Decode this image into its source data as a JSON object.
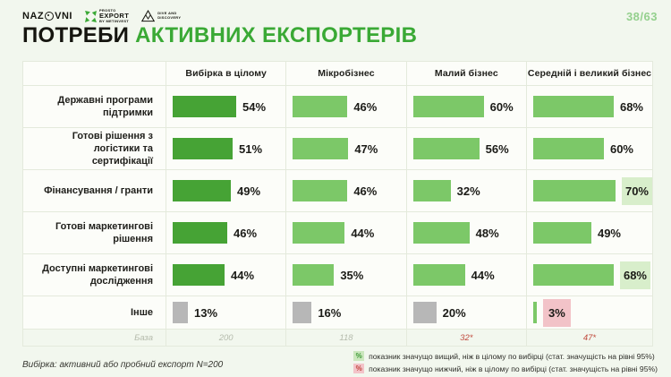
{
  "page": {
    "number": "38/63",
    "background": "#f2f7ee",
    "accent_green": "#3aa935"
  },
  "logos": {
    "nazovni": {
      "text_before": "NAZ",
      "text_after": "VNI"
    },
    "export": {
      "top": "PROSTO",
      "main": "EXPORT",
      "bottom": "BY METINVEST"
    },
    "discovery": {
      "line1": "DIVE AND",
      "line2": "DISCOVERY"
    }
  },
  "title": {
    "part1": "ПОТРЕБИ ",
    "part2": "АКТИВНИХ ЕКСПОРТЕРІВ"
  },
  "chart_data": {
    "type": "bar",
    "orientation": "horizontal",
    "title": "ПОТРЕБИ АКТИВНИХ ЕКСПОРТЕРІВ",
    "unit": "%",
    "columns": [
      "Вибірка в цілому",
      "Мікробізнес",
      "Малий бізнес",
      "Середній і великий бізнес"
    ],
    "rows": [
      {
        "label": "Державні програми підтримки",
        "cells": [
          {
            "value": 54
          },
          {
            "value": 46
          },
          {
            "value": 60
          },
          {
            "value": 68
          }
        ]
      },
      {
        "label": "Готові рішення з логістики та сертифікації",
        "cells": [
          {
            "value": 51
          },
          {
            "value": 47
          },
          {
            "value": 56
          },
          {
            "value": 60
          }
        ]
      },
      {
        "label": "Фінансування / гранти",
        "cells": [
          {
            "value": 49
          },
          {
            "value": 46
          },
          {
            "value": 32
          },
          {
            "value": 70,
            "significance": "higher"
          }
        ]
      },
      {
        "label": "Готові маркетингові рішення",
        "cells": [
          {
            "value": 46
          },
          {
            "value": 44
          },
          {
            "value": 48
          },
          {
            "value": 49
          }
        ]
      },
      {
        "label": "Доступні маркетингові дослідження",
        "cells": [
          {
            "value": 44
          },
          {
            "value": 35
          },
          {
            "value": 44
          },
          {
            "value": 68,
            "significance": "higher"
          }
        ]
      },
      {
        "label": "Інше",
        "cells": [
          {
            "value": 13,
            "bar": "gray"
          },
          {
            "value": 16,
            "bar": "gray"
          },
          {
            "value": 20,
            "bar": "gray"
          },
          {
            "value": 3,
            "bar": "green",
            "significance": "lower"
          }
        ]
      }
    ],
    "base_row": {
      "label": "База",
      "values": [
        {
          "text": "200"
        },
        {
          "text": "118"
        },
        {
          "text": "32*",
          "alert": true
        },
        {
          "text": "47*",
          "alert": true
        }
      ]
    },
    "colors": {
      "bar_overall": "#46a335",
      "bar_segment": "#7cc868",
      "bar_other": "#b7b7b7",
      "significant_higher_bg": "#d8eecb",
      "significant_lower_bg": "#f2c3c8",
      "base_alert": "#c0493c"
    },
    "legend_position": "bottom-right"
  },
  "footer": {
    "note": "Вибірка: активний або пробний експорт N=200",
    "legend": [
      {
        "symbol": "%",
        "type": "higher",
        "text": "показник значущо вищий, ніж в цілому по вибірці (стат. значущість на рівні 95%)"
      },
      {
        "symbol": "%",
        "type": "lower",
        "text": "показник значущо нижчий, ніж в цілому по вибірці (стат. значущість на рівні 95%)"
      }
    ]
  }
}
